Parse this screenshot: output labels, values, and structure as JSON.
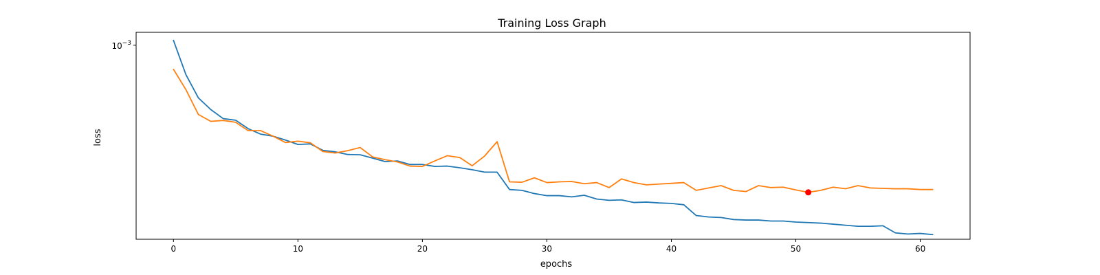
{
  "chart_data": {
    "type": "line",
    "title": "Training Loss Graph",
    "xlabel": "epochs",
    "ylabel": "loss",
    "y_scale": "log",
    "xlim": [
      -3,
      64
    ],
    "ylim": [
      0.000208,
      0.00111
    ],
    "grid": false,
    "legend": "none",
    "x_ticks": [
      0,
      10,
      20,
      30,
      40,
      50,
      60
    ],
    "y_ticks": [
      {
        "value": 0.001,
        "label": "10",
        "exp": "−3"
      }
    ],
    "x": [
      0,
      1,
      2,
      3,
      4,
      5,
      6,
      7,
      8,
      9,
      10,
      11,
      12,
      13,
      14,
      15,
      16,
      17,
      18,
      19,
      20,
      21,
      22,
      23,
      24,
      25,
      26,
      27,
      28,
      29,
      30,
      31,
      32,
      33,
      34,
      35,
      36,
      37,
      38,
      39,
      40,
      41,
      42,
      43,
      44,
      45,
      46,
      47,
      48,
      49,
      50,
      51,
      52,
      53,
      54,
      55,
      56,
      57,
      58,
      59,
      60,
      61
    ],
    "series": [
      {
        "color": "#1f77b4",
        "values": [
          0.00104,
          0.000788,
          0.000653,
          0.000594,
          0.000552,
          0.000545,
          0.000509,
          0.000487,
          0.000479,
          0.000464,
          0.000448,
          0.00045,
          0.000427,
          0.000422,
          0.000413,
          0.000412,
          0.000401,
          0.00039,
          0.000392,
          0.000381,
          0.000381,
          0.000375,
          0.000376,
          0.000371,
          0.000365,
          0.000358,
          0.000358,
          0.000311,
          0.000309,
          0.000301,
          0.000296,
          0.000296,
          0.000293,
          0.000297,
          0.000288,
          0.000285,
          0.000286,
          0.00028,
          0.000281,
          0.000279,
          0.000278,
          0.000275,
          0.000252,
          0.000249,
          0.000248,
          0.000244,
          0.000243,
          0.000243,
          0.000241,
          0.000241,
          0.000239,
          0.000238,
          0.000237,
          0.000235,
          0.000233,
          0.000231,
          0.000231,
          0.000232,
          0.000219,
          0.000217,
          0.000218,
          0.000216
        ]
      },
      {
        "color": "#ff7f0e",
        "values": [
          0.000823,
          0.000698,
          0.000571,
          0.00054,
          0.000544,
          0.000536,
          0.000501,
          0.000501,
          0.000479,
          0.000455,
          0.00046,
          0.000454,
          0.000423,
          0.000418,
          0.000426,
          0.000437,
          0.000405,
          0.000396,
          0.000389,
          0.000376,
          0.000375,
          0.000392,
          0.000409,
          0.000403,
          0.000377,
          0.000408,
          0.000458,
          0.000331,
          0.00033,
          0.000342,
          0.000329,
          0.000331,
          0.000332,
          0.000326,
          0.000329,
          0.000316,
          0.000339,
          0.000329,
          0.000323,
          0.000325,
          0.000327,
          0.000329,
          0.000309,
          0.000315,
          0.000321,
          0.000309,
          0.000306,
          0.000321,
          0.000316,
          0.000317,
          0.00031,
          0.000304,
          0.000309,
          0.000317,
          0.000313,
          0.000321,
          0.000315,
          0.000314,
          0.000313,
          0.000313,
          0.000311,
          0.000311
        ]
      }
    ],
    "highlight": {
      "x": 51,
      "y": 0.000304,
      "color": "#ff0000"
    }
  }
}
